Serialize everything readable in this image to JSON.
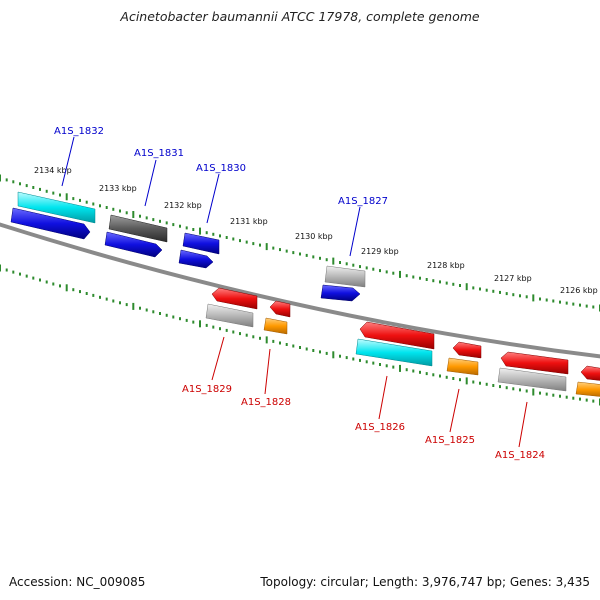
{
  "title": "Acinetobacter baumannii ATCC 17978, complete genome",
  "footer": {
    "accession": "Accession: NC_009085",
    "topology": "Topology: circular; Length: 3,976,747 bp; Genes: 3,435"
  },
  "colors": {
    "backbone": "#8a8a8a",
    "tick": "#2e8b2e",
    "label_forward": "#0000cc",
    "label_reverse": "#cc0000",
    "cyan": "#00e5ee",
    "blue": "#1010e0",
    "dark_gray": "#5a5a5a",
    "light_gray": "#b8b8b8",
    "red": "#ee1010",
    "orange": "#ff9900"
  },
  "kbp_labels": [
    "2134 kbp",
    "2133 kbp",
    "2132 kbp",
    "2131 kbp",
    "2130 kbp",
    "2129 kbp",
    "2128 kbp",
    "2127 kbp",
    "2126 kbp"
  ],
  "forward_labels": [
    "A1S_1832",
    "A1S_1831",
    "A1S_1830",
    "A1S_1827"
  ],
  "reverse_labels": [
    "A1S_1829",
    "A1S_1828",
    "A1S_1826",
    "A1S_1825",
    "A1S_1824"
  ]
}
